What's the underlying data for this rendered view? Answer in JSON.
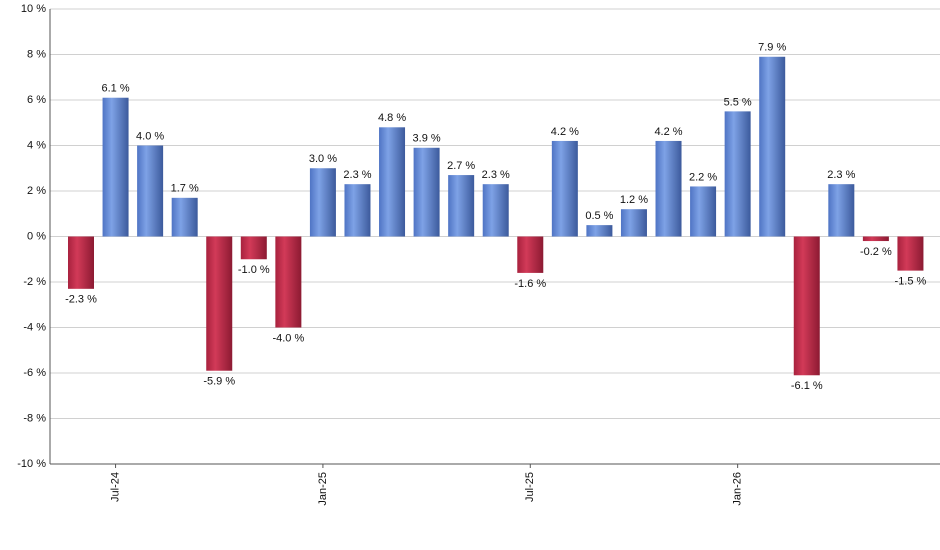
{
  "chart_data": {
    "type": "bar",
    "categories": [
      null,
      "Jul-24",
      null,
      null,
      null,
      null,
      null,
      "Jan-25",
      null,
      null,
      null,
      null,
      null,
      "Jul-25",
      null,
      null,
      null,
      null,
      null,
      "Jan-26",
      null,
      null,
      null,
      null,
      null
    ],
    "values": [
      -2.3,
      6.1,
      4.0,
      1.7,
      -5.9,
      -1.0,
      -4.0,
      3.0,
      2.3,
      4.8,
      3.9,
      2.7,
      2.3,
      -1.6,
      4.2,
      0.5,
      1.2,
      4.2,
      2.2,
      5.5,
      7.9,
      -6.1,
      2.3,
      -0.2,
      -1.5
    ],
    "value_labels": [
      "-2.3 %",
      "6.1 %",
      "4.0 %",
      "1.7 %",
      "-5.9 %",
      "-1.0 %",
      "-4.0 %",
      "3.0 %",
      "2.3 %",
      "4.8 %",
      "3.9 %",
      "2.7 %",
      "2.3 %",
      "-1.6 %",
      "4.2 %",
      "0.5 %",
      "1.2 %",
      "4.2 %",
      "2.2 %",
      "5.5 %",
      "7.9 %",
      "-6.1 %",
      "2.3 %",
      "-0.2 %",
      "-1.5 %"
    ],
    "positive_color": "#7ea2e6",
    "negative_color": "#d23a58",
    "ylim": [
      -10,
      10
    ],
    "yticks": [
      {
        "value": -10,
        "label": "-10 %"
      },
      {
        "value": -8,
        "label": "-8 %"
      },
      {
        "value": -6,
        "label": "-6 %"
      },
      {
        "value": -4,
        "label": "-4 %"
      },
      {
        "value": -2,
        "label": "-2 %"
      },
      {
        "value": 0,
        "label": "0 %"
      },
      {
        "value": 2,
        "label": "2 %"
      },
      {
        "value": 4,
        "label": "4 %"
      },
      {
        "value": 6,
        "label": "6 %"
      },
      {
        "value": 8,
        "label": "8 %"
      },
      {
        "value": 10,
        "label": "10 %"
      }
    ],
    "grid": true
  }
}
